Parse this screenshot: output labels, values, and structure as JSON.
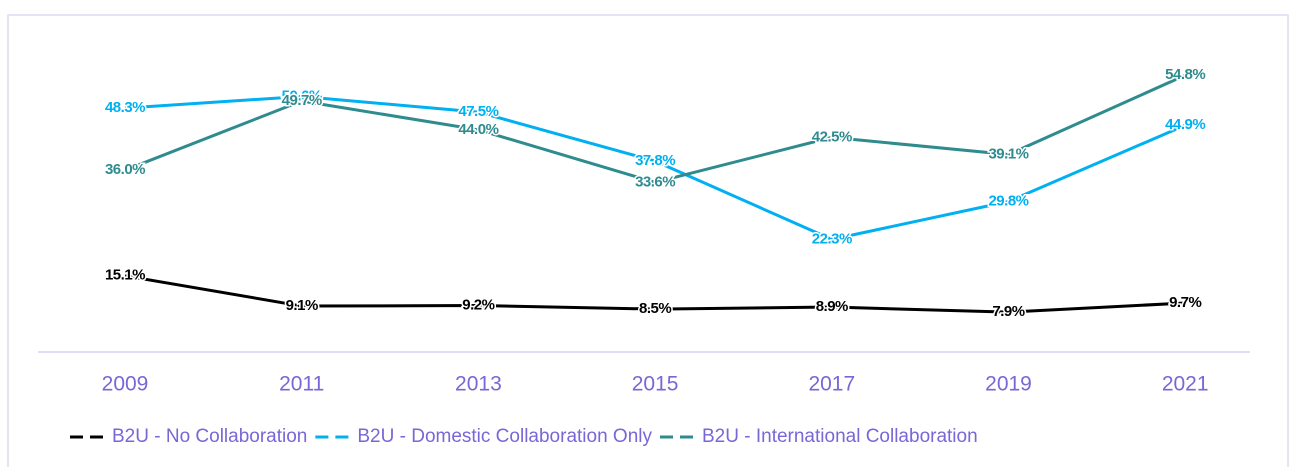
{
  "chart_data": {
    "type": "line",
    "categories": [
      "2009",
      "2011",
      "2013",
      "2015",
      "2017",
      "2019",
      "2021"
    ],
    "series": [
      {
        "name": "B2U - No Collaboration",
        "color": "#000000",
        "values": [
          15.1,
          9.1,
          9.2,
          8.5,
          8.9,
          7.9,
          9.7
        ],
        "value_labels": [
          "15.1%",
          "9.1%",
          "9.2%",
          "8.5%",
          "8.9%",
          "7.9%",
          "9.7%"
        ]
      },
      {
        "name": "B2U - Domestic Collaboration Only",
        "color": "#00b0f0",
        "values": [
          48.3,
          50.6,
          47.5,
          37.8,
          22.3,
          29.8,
          44.9
        ],
        "value_labels": [
          "48.3%",
          "50.6%",
          "47.5%",
          "37.8%",
          "22.3%",
          "29.8%",
          "44.9%"
        ]
      },
      {
        "name": "B2U - International Collaboration",
        "color": "#2e8b8e",
        "values": [
          36.0,
          49.7,
          44.0,
          33.6,
          42.5,
          39.1,
          54.8
        ],
        "value_labels": [
          "36.0%",
          "49.7%",
          "44.0%",
          "33.6%",
          "42.5%",
          "39.1%",
          "54.8%"
        ]
      }
    ],
    "legend": "bottom"
  }
}
